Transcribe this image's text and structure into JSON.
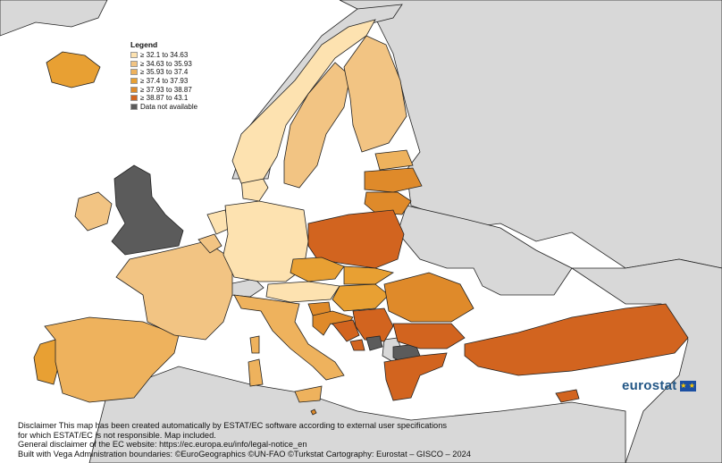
{
  "legend": {
    "title": "Legend",
    "items": [
      {
        "label": "≥ 32.1 to 34.63",
        "color": "#fde2b0"
      },
      {
        "label": "≥ 34.63 to 35.93",
        "color": "#f2c483"
      },
      {
        "label": "≥ 35.93 to 37.4",
        "color": "#eeb25d"
      },
      {
        "label": "≥ 37.4 to 37.93",
        "color": "#e8a033"
      },
      {
        "label": "≥ 37.93 to 38.87",
        "color": "#df8a2a"
      },
      {
        "label": "≥ 38.87 to 43.1",
        "color": "#d2641f"
      },
      {
        "label": "Data not available",
        "color": "#5b5b5b"
      }
    ]
  },
  "colors": {
    "sea": "#ffffff",
    "non_eu_land": "#d8d8d8",
    "border": "#222222"
  },
  "logo": {
    "text": "eurostat",
    "flag_icon": "eu-flag-icon"
  },
  "disclaimer": {
    "line1": "Disclaimer This map has been created automatically by ESTAT/EC software according to external user specifications",
    "line2": "for which ESTAT/EC is not responsible. Map included.",
    "line3": "General disclaimer of the EC website: https://ec.europa.eu/info/legal-notice_en",
    "line4": "Built with Vega Administration boundaries: ©EuroGeographics ©UN-FAO ©Turkstat Cartography: Eurostat – GISCO – 2024"
  }
}
